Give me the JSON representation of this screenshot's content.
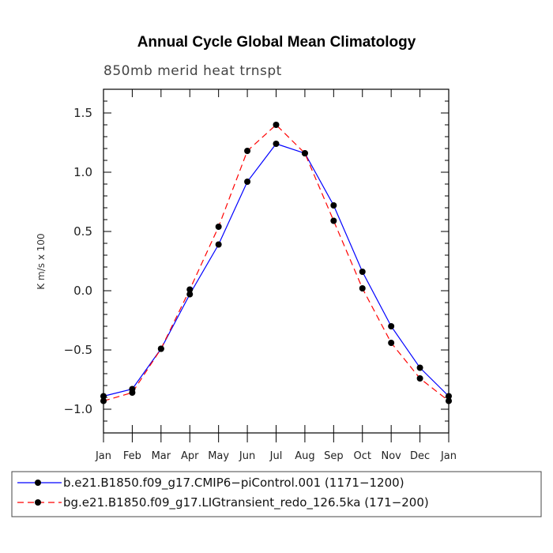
{
  "chart_data": {
    "type": "line",
    "title": "Annual Cycle Global Mean Climatology",
    "subtitle": "850mb merid heat trnspt",
    "xlabel": "",
    "ylabel": "K m/s x 100",
    "categories": [
      "Jan",
      "Feb",
      "Mar",
      "Apr",
      "May",
      "Jun",
      "Jul",
      "Aug",
      "Sep",
      "Oct",
      "Nov",
      "Dec",
      "Jan"
    ],
    "ylim": [
      -1.2,
      1.7
    ],
    "yticks": [
      -1.0,
      -0.5,
      0.0,
      0.5,
      1.0,
      1.5
    ],
    "ytick_labels": [
      "−1.0",
      "−0.5",
      "0.0",
      "0.5",
      "1.0",
      "1.5"
    ],
    "series": [
      {
        "name": "b.e21.B1850.f09_g17.CMIP6−piControl.001 (1171−1200)",
        "color": "#0000ff",
        "dash": "solid",
        "values": [
          -0.89,
          -0.83,
          -0.49,
          -0.03,
          0.39,
          0.92,
          1.24,
          1.16,
          0.72,
          0.16,
          -0.3,
          -0.65,
          -0.89
        ]
      },
      {
        "name": "bg.e21.B1850.f09_g17.LIGtransient_redo_126.5ka (171−200)",
        "color": "#ff0000",
        "dash": "dashed",
        "values": [
          -0.93,
          -0.86,
          -0.49,
          0.01,
          0.54,
          1.18,
          1.4,
          1.16,
          0.59,
          0.02,
          -0.44,
          -0.74,
          -0.93
        ]
      }
    ],
    "marker_color": "#000000",
    "legend_position": "bottom"
  }
}
